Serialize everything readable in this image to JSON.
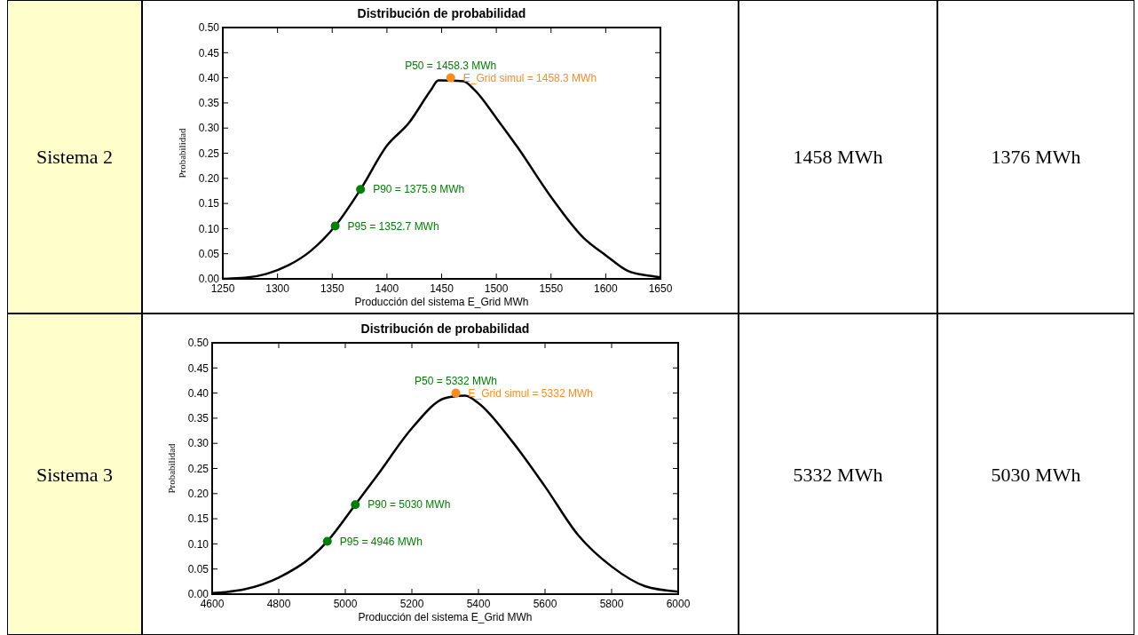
{
  "chart_data": [
    {
      "type": "other",
      "title": "Sistema 2",
      "color": "#ffffcc"
    },
    {
      "type": "line",
      "title": "Distribución de probabilidad",
      "xlabel": "Producción del sistema E_Grid MWh",
      "ylabel": "Probabilidad",
      "marker": "circle",
      "xlim": [
        1250,
        1650
      ],
      "xticks": [
        1250,
        1300,
        1350,
        1400,
        1450,
        1500,
        1550,
        1600,
        1650
      ],
      "ylim": [
        0,
        0.5
      ],
      "yticks": [
        {
          "value": 0,
          "label": "0.00"
        },
        {
          "value": 0.05,
          "label": "0.05"
        },
        {
          "value": 0.1,
          "label": "0.10"
        },
        {
          "value": 0.15,
          "label": "0.15"
        },
        {
          "value": 0.2,
          "label": "0.20"
        },
        {
          "value": 0.25,
          "label": "0.25"
        },
        {
          "value": 0.3,
          "label": "0.30"
        },
        {
          "value": 0.35,
          "label": "0.35"
        },
        {
          "value": 0.4,
          "label": "0.40"
        },
        {
          "value": 0.45,
          "label": "0.45"
        },
        {
          "value": 0.5,
          "label": "0.50"
        }
      ],
      "series": [
        {
          "type": "line",
          "marker": "none",
          "color": "#000000",
          "x": [
            1250,
            1270,
            1290,
            1310,
            1330,
            1352.7,
            1375.9,
            1400,
            1420,
            1440,
            1447,
            1470,
            1480,
            1500,
            1520,
            1550,
            1580,
            1600,
            1620,
            1640,
            1650
          ],
          "values": [
            0,
            0.002,
            0.01,
            0.027,
            0.055,
            0.105,
            0.178,
            0.265,
            0.31,
            0.375,
            0.395,
            0.393,
            0.376,
            0.32,
            0.26,
            0.163,
            0.081,
            0.047,
            0.016,
            0.006,
            0.003
          ]
        },
        {
          "type": "scatter",
          "color": "#008000",
          "x": [
            1352.7,
            1375.9
          ],
          "values": [
            0.105,
            0.178
          ]
        },
        {
          "type": "scatter",
          "color": "#ff8c1a",
          "x": [
            1458.3
          ],
          "values": [
            0.4
          ]
        }
      ],
      "annotations": [
        {
          "text": "P50 = 1458.3 MWh",
          "x": 1458.3,
          "y": 0.4
        },
        {
          "text": "E_Grid simul = 1458.3 MWh",
          "x": 1458.3,
          "y": 0.4
        },
        {
          "text": "P90 = 1375.9 MWh",
          "x": 1375.9,
          "y": 0.178
        },
        {
          "text": "P95 = 1352.7 MWh",
          "x": 1352.7,
          "y": 0.105
        }
      ]
    },
    {
      "type": "other",
      "title": "1458 MWh",
      "color": "#ffffff"
    },
    {
      "type": "other",
      "title": "1376 MWh",
      "color": "#ffffff"
    },
    {
      "type": "other",
      "title": "Sistema 3",
      "color": "#ffffcc"
    },
    {
      "type": "line",
      "title": "Distribución de probabilidad",
      "xlabel": "Producción del sistema E_Grid MWh",
      "ylabel": "Probabilidad",
      "marker": "circle",
      "xlim": [
        4600,
        6000
      ],
      "xticks": [
        4600,
        4800,
        5000,
        5200,
        5400,
        5600,
        5800,
        6000
      ],
      "ylim": [
        0,
        0.5
      ],
      "yticks": [
        {
          "value": 0,
          "label": "0.00"
        },
        {
          "value": 0.05,
          "label": "0.05"
        },
        {
          "value": 0.1,
          "label": "0.10"
        },
        {
          "value": 0.15,
          "label": "0.15"
        },
        {
          "value": 0.2,
          "label": "0.20"
        },
        {
          "value": 0.25,
          "label": "0.25"
        },
        {
          "value": 0.3,
          "label": "0.30"
        },
        {
          "value": 0.35,
          "label": "0.35"
        },
        {
          "value": 0.4,
          "label": "0.40"
        },
        {
          "value": 0.45,
          "label": "0.45"
        },
        {
          "value": 0.5,
          "label": "0.50"
        }
      ],
      "series": [
        {
          "type": "line",
          "marker": "none",
          "color": "#000000",
          "x": [
            4600,
            4700,
            4800,
            4900,
            4946,
            5030,
            5100,
            5200,
            5300,
            5360,
            5400,
            5500,
            5600,
            5700,
            5800,
            5900,
            6000
          ],
          "values": [
            0.002,
            0.01,
            0.033,
            0.075,
            0.105,
            0.178,
            0.24,
            0.33,
            0.39,
            0.395,
            0.38,
            0.305,
            0.214,
            0.117,
            0.055,
            0.016,
            0.005
          ]
        },
        {
          "type": "scatter",
          "color": "#008000",
          "x": [
            4946,
            5030
          ],
          "values": [
            0.105,
            0.178
          ]
        },
        {
          "type": "scatter",
          "color": "#ff8c1a",
          "x": [
            5332
          ],
          "values": [
            0.4
          ]
        }
      ],
      "annotations": [
        {
          "text": "P50 = 5332 MWh",
          "x": 5332,
          "y": 0.4
        },
        {
          "text": "E_Grid simul = 5332 MWh",
          "x": 5332,
          "y": 0.4
        },
        {
          "text": "P90 = 5030 MWh",
          "x": 5030,
          "y": 0.178
        },
        {
          "text": "P95 = 4946 MWh",
          "x": 4946,
          "y": 0.105
        }
      ]
    },
    {
      "type": "other",
      "title": "5332 MWh",
      "color": "#ffffff"
    },
    {
      "type": "other",
      "title": "5030 MWh",
      "color": "#ffffff"
    }
  ]
}
